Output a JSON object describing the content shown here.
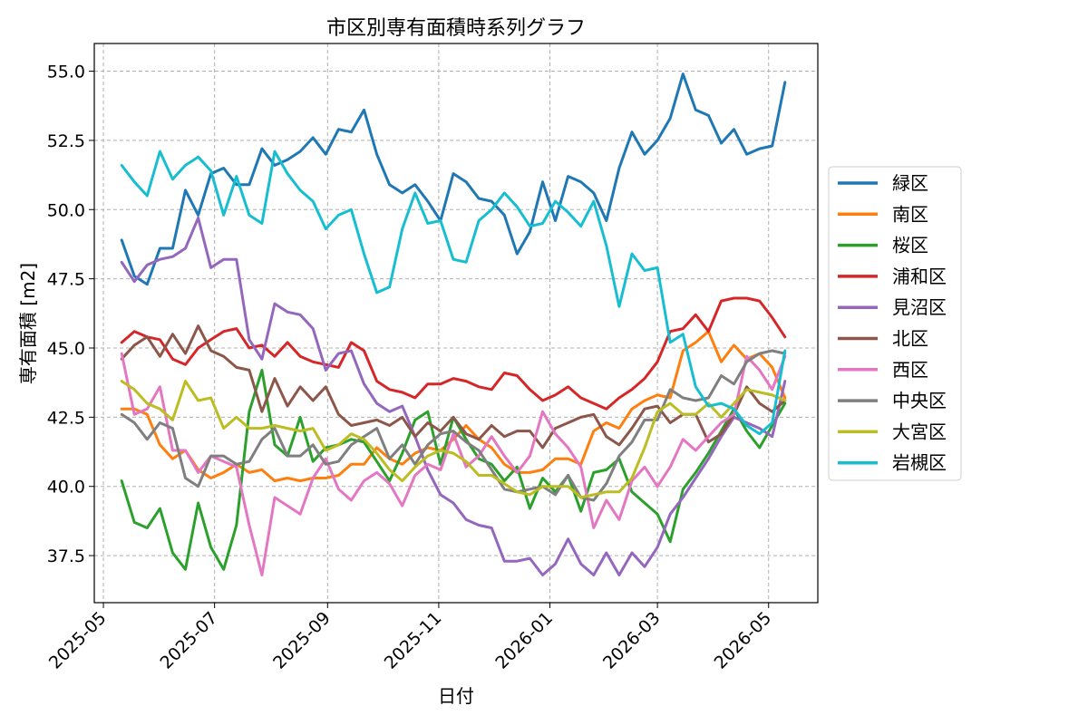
{
  "chart_data": {
    "type": "line",
    "title": "市区別専有面積時系列グラフ",
    "xlabel": "日付",
    "ylabel": "専有面積 [m2]",
    "x_range": [
      "2025-04-26",
      "2026-05-28"
    ],
    "ylim": [
      35.8,
      56.0
    ],
    "y_ticks": [
      37.5,
      40.0,
      42.5,
      45.0,
      47.5,
      50.0,
      52.5,
      55.0
    ],
    "y_tick_labels": [
      "37.5",
      "40.0",
      "42.5",
      "45.0",
      "47.5",
      "50.0",
      "52.5",
      "55.0"
    ],
    "x_ticks": [
      "2025-05-01",
      "2025-07-01",
      "2025-09-01",
      "2025-11-01",
      "2026-01-01",
      "2026-03-01",
      "2026-05-01"
    ],
    "x_tick_labels": [
      "2025-05",
      "2025-07",
      "2025-09",
      "2025-11",
      "2026-01",
      "2026-03",
      "2026-05"
    ],
    "grid": true,
    "legend_position": "right",
    "x_start": "2025-05-11",
    "x_step_days": 7,
    "series": [
      {
        "name": "緑区",
        "color": "#1f77b4",
        "values": [
          48.9,
          47.6,
          47.3,
          48.6,
          48.6,
          50.7,
          49.8,
          51.3,
          51.5,
          50.9,
          50.9,
          52.2,
          51.6,
          51.8,
          52.1,
          52.6,
          52.0,
          52.9,
          52.8,
          53.6,
          52.0,
          50.9,
          50.6,
          50.9,
          50.3,
          49.6,
          51.3,
          51.0,
          50.4,
          50.3,
          49.8,
          48.4,
          49.2,
          51.0,
          49.6,
          51.2,
          51.0,
          50.6,
          49.6,
          51.5,
          52.8,
          52.0,
          52.5,
          53.3,
          54.9,
          53.6,
          53.4,
          52.4,
          52.9,
          52.0,
          52.2,
          52.3,
          54.6
        ]
      },
      {
        "name": "南区",
        "color": "#ff7f0e",
        "values": [
          42.8,
          42.8,
          42.6,
          41.5,
          41.0,
          41.3,
          40.6,
          40.3,
          40.5,
          40.8,
          40.5,
          40.6,
          40.2,
          40.3,
          40.2,
          40.3,
          40.3,
          40.4,
          40.8,
          40.8,
          41.4,
          41.0,
          40.8,
          41.2,
          41.4,
          41.3,
          41.7,
          42.2,
          41.7,
          41.4,
          40.8,
          40.5,
          40.5,
          40.6,
          41.0,
          41.0,
          40.8,
          42.0,
          42.3,
          42.1,
          42.8,
          43.1,
          43.3,
          43.2,
          44.9,
          45.2,
          45.6,
          44.5,
          45.1,
          44.6,
          44.8,
          44.3,
          43.2
        ]
      },
      {
        "name": "桜区",
        "color": "#2ca02c",
        "values": [
          40.2,
          38.7,
          38.5,
          39.2,
          37.6,
          37.0,
          39.4,
          37.8,
          37.0,
          38.6,
          42.7,
          44.2,
          41.5,
          41.1,
          42.5,
          40.9,
          41.4,
          41.5,
          41.7,
          41.6,
          40.9,
          40.2,
          41.2,
          42.4,
          42.7,
          40.8,
          42.5,
          41.7,
          41.0,
          40.8,
          40.2,
          40.7,
          39.2,
          40.3,
          39.8,
          40.4,
          39.1,
          40.5,
          40.6,
          41.0,
          39.8,
          39.4,
          39.0,
          38.0,
          39.9,
          40.5,
          41.2,
          42.0,
          42.8,
          42.0,
          41.4,
          42.2,
          43.0
        ]
      },
      {
        "name": "浦和区",
        "color": "#d62728",
        "values": [
          45.2,
          45.6,
          45.4,
          45.3,
          44.6,
          44.4,
          45.0,
          45.3,
          45.6,
          45.7,
          45.0,
          45.1,
          44.7,
          45.2,
          44.7,
          44.5,
          44.4,
          44.3,
          45.2,
          44.9,
          43.8,
          43.5,
          43.4,
          43.2,
          43.7,
          43.7,
          43.9,
          43.8,
          43.6,
          43.5,
          44.1,
          44.0,
          43.5,
          43.1,
          43.3,
          43.6,
          43.2,
          43.0,
          42.8,
          43.2,
          43.5,
          43.9,
          44.5,
          45.6,
          45.7,
          46.2,
          45.6,
          46.7,
          46.8,
          46.8,
          46.7,
          46.1,
          45.4
        ]
      },
      {
        "name": "見沼区",
        "color": "#9467bd",
        "values": [
          48.1,
          47.4,
          48.0,
          48.2,
          48.3,
          48.6,
          49.7,
          47.9,
          48.2,
          48.2,
          45.3,
          44.6,
          46.6,
          46.3,
          46.2,
          45.7,
          44.2,
          44.8,
          44.9,
          43.7,
          43.0,
          42.7,
          42.9,
          41.8,
          40.6,
          39.7,
          39.4,
          38.8,
          38.6,
          38.5,
          37.3,
          37.3,
          37.4,
          36.8,
          37.2,
          38.1,
          37.2,
          36.8,
          37.6,
          36.8,
          37.6,
          37.1,
          37.8,
          39.0,
          39.6,
          40.3,
          41.0,
          41.8,
          42.5,
          42.3,
          42.1,
          41.8,
          43.8
        ]
      },
      {
        "name": "北区",
        "color": "#8c564b",
        "values": [
          44.6,
          45.1,
          45.4,
          44.7,
          45.5,
          44.8,
          45.8,
          44.9,
          44.7,
          44.3,
          44.2,
          42.7,
          43.9,
          42.9,
          43.6,
          43.1,
          43.6,
          42.6,
          42.2,
          42.3,
          42.4,
          42.2,
          42.5,
          41.8,
          42.3,
          42.0,
          42.5,
          41.9,
          41.7,
          42.2,
          41.8,
          42.0,
          42.0,
          41.4,
          42.1,
          42.3,
          42.5,
          42.6,
          41.8,
          41.5,
          42.1,
          42.8,
          42.9,
          42.3,
          42.6,
          42.6,
          41.6,
          41.9,
          42.6,
          43.6,
          43.0,
          42.7,
          43.1
        ]
      },
      {
        "name": "西区",
        "color": "#e377c2",
        "values": [
          44.8,
          42.6,
          42.8,
          43.6,
          41.3,
          41.3,
          40.5,
          41.1,
          40.9,
          40.7,
          38.6,
          36.8,
          39.6,
          39.3,
          39.0,
          40.3,
          41.0,
          39.9,
          39.5,
          40.2,
          40.5,
          40.1,
          39.3,
          40.4,
          40.8,
          40.6,
          41.9,
          40.7,
          41.1,
          41.8,
          41.1,
          40.5,
          41.1,
          42.7,
          41.9,
          41.4,
          40.7,
          38.5,
          39.5,
          38.8,
          40.2,
          40.7,
          40.0,
          40.7,
          41.7,
          41.3,
          41.8,
          42.3,
          42.6,
          44.7,
          44.2,
          43.5,
          44.7
        ]
      },
      {
        "name": "中央区",
        "color": "#7f7f7f",
        "values": [
          42.6,
          42.3,
          41.7,
          42.3,
          42.1,
          40.3,
          40.0,
          41.1,
          41.1,
          40.8,
          40.9,
          41.7,
          42.1,
          41.1,
          41.1,
          41.5,
          40.8,
          40.9,
          41.5,
          41.8,
          42.1,
          41.0,
          41.5,
          40.8,
          41.5,
          41.9,
          42.0,
          41.6,
          41.3,
          40.6,
          39.9,
          39.8,
          39.9,
          40.0,
          39.7,
          40.4,
          39.6,
          39.5,
          40.1,
          41.1,
          41.6,
          42.4,
          42.4,
          43.5,
          43.2,
          43.1,
          43.2,
          44.0,
          43.7,
          44.5,
          44.8,
          44.9,
          44.8
        ]
      },
      {
        "name": "大宮区",
        "color": "#bcbd22",
        "values": [
          43.8,
          43.5,
          43.0,
          42.8,
          42.4,
          43.8,
          43.1,
          43.2,
          42.1,
          42.5,
          42.1,
          42.1,
          42.2,
          42.1,
          42.0,
          42.1,
          41.3,
          41.5,
          41.9,
          41.7,
          41.2,
          40.6,
          40.2,
          40.7,
          41.1,
          41.3,
          41.2,
          40.9,
          40.4,
          40.4,
          40.1,
          39.8,
          39.7,
          40.0,
          40.0,
          40.0,
          39.6,
          39.7,
          39.8,
          39.8,
          40.3,
          41.4,
          42.7,
          43.0,
          42.6,
          42.6,
          43.0,
          42.5,
          43.0,
          43.5,
          43.4,
          43.3,
          43.1
        ]
      },
      {
        "name": "岩槻区",
        "color": "#17becf",
        "values": [
          51.6,
          51.0,
          50.5,
          52.1,
          51.1,
          51.6,
          51.9,
          51.4,
          49.8,
          51.2,
          49.8,
          49.5,
          52.1,
          51.3,
          50.7,
          50.3,
          49.3,
          49.8,
          50.0,
          48.4,
          47.0,
          47.2,
          49.3,
          50.6,
          49.5,
          49.6,
          48.2,
          48.1,
          49.6,
          50.0,
          50.6,
          50.1,
          49.4,
          49.5,
          50.3,
          49.9,
          49.4,
          50.3,
          48.7,
          46.5,
          48.4,
          47.8,
          47.9,
          45.2,
          45.5,
          43.6,
          42.9,
          43.0,
          42.8,
          42.2,
          41.9,
          42.3,
          44.9
        ]
      }
    ]
  }
}
